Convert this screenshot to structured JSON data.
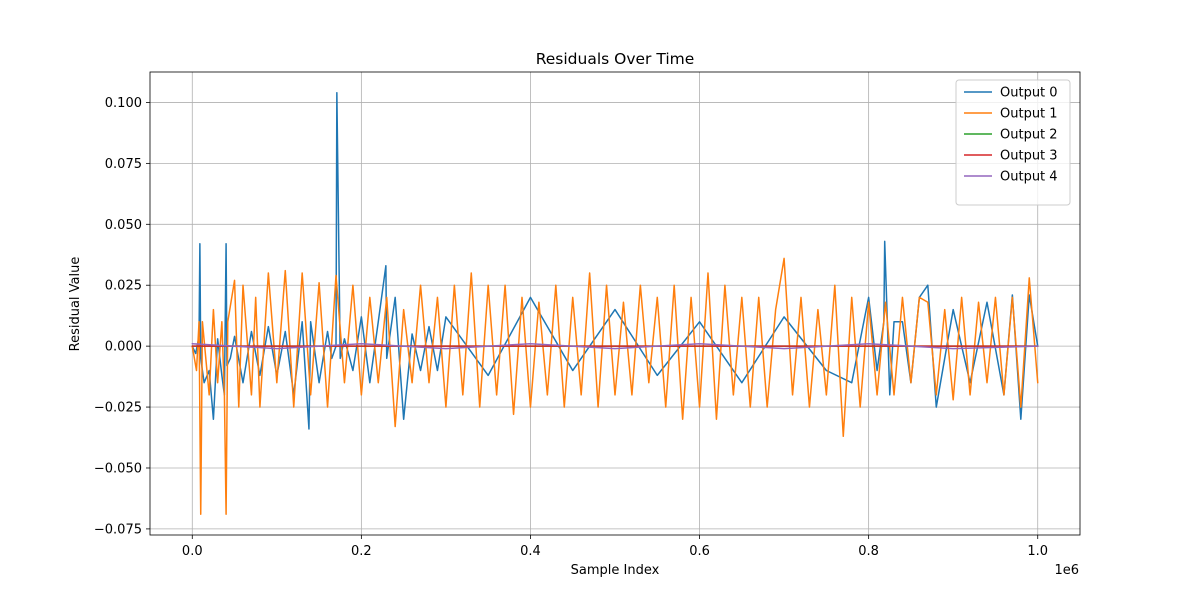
{
  "chart_data": {
    "type": "line",
    "title": "Residuals Over Time",
    "xlabel": "Sample Index",
    "ylabel": "Residual Value",
    "x_offset_label": "1e6",
    "xlim": [
      -0.05,
      1.05
    ],
    "ylim": [
      -0.0775,
      0.1125
    ],
    "x_ticks": [
      0.0,
      0.2,
      0.4,
      0.6,
      0.8,
      1.0
    ],
    "x_tick_labels": [
      "0.0",
      "0.2",
      "0.4",
      "0.6",
      "0.8",
      "1.0"
    ],
    "y_ticks": [
      -0.075,
      -0.05,
      -0.025,
      0.0,
      0.025,
      0.05,
      0.075,
      0.1
    ],
    "y_tick_labels": [
      "−0.075",
      "−0.050",
      "−0.025",
      "0.000",
      "0.025",
      "0.050",
      "0.075",
      "0.100"
    ],
    "grid": true,
    "legend_position": "top-right",
    "series": [
      {
        "name": "Output 0",
        "color": "#1f77b4",
        "x": [
          0.0,
          0.004,
          0.008,
          0.009,
          0.01,
          0.014,
          0.02,
          0.025,
          0.03,
          0.035,
          0.038,
          0.04,
          0.041,
          0.045,
          0.05,
          0.06,
          0.07,
          0.08,
          0.09,
          0.1,
          0.11,
          0.12,
          0.13,
          0.138,
          0.14,
          0.15,
          0.16,
          0.165,
          0.17,
          0.171,
          0.175,
          0.18,
          0.19,
          0.2,
          0.21,
          0.22,
          0.229,
          0.23,
          0.24,
          0.25,
          0.26,
          0.27,
          0.28,
          0.29,
          0.3,
          0.35,
          0.4,
          0.45,
          0.5,
          0.55,
          0.6,
          0.65,
          0.7,
          0.75,
          0.78,
          0.8,
          0.81,
          0.818,
          0.819,
          0.825,
          0.83,
          0.84,
          0.85,
          0.86,
          0.87,
          0.88,
          0.9,
          0.92,
          0.94,
          0.96,
          0.97,
          0.98,
          0.99,
          1.0
        ],
        "y": [
          0.0,
          -0.003,
          0.004,
          0.042,
          -0.005,
          -0.015,
          -0.01,
          -0.03,
          0.003,
          -0.012,
          -0.02,
          0.042,
          -0.008,
          -0.005,
          0.004,
          -0.015,
          0.006,
          -0.012,
          0.008,
          -0.012,
          0.006,
          -0.02,
          0.01,
          -0.034,
          0.01,
          -0.015,
          0.006,
          -0.005,
          0.0,
          0.104,
          -0.005,
          0.003,
          -0.01,
          0.012,
          -0.015,
          0.01,
          0.033,
          -0.005,
          0.02,
          -0.03,
          0.005,
          -0.01,
          0.008,
          -0.01,
          0.012,
          -0.012,
          0.02,
          -0.01,
          0.015,
          -0.012,
          0.01,
          -0.015,
          0.012,
          -0.01,
          -0.015,
          0.02,
          -0.01,
          0.01,
          0.043,
          -0.02,
          0.01,
          0.01,
          -0.015,
          0.02,
          0.025,
          -0.025,
          0.015,
          -0.015,
          0.018,
          -0.02,
          0.021,
          -0.03,
          0.021,
          0.0
        ]
      },
      {
        "name": "Output 1",
        "color": "#ff7f0e",
        "x": [
          0.0,
          0.005,
          0.008,
          0.01,
          0.012,
          0.02,
          0.025,
          0.03,
          0.035,
          0.038,
          0.04,
          0.042,
          0.05,
          0.055,
          0.06,
          0.07,
          0.075,
          0.08,
          0.09,
          0.1,
          0.11,
          0.12,
          0.13,
          0.14,
          0.15,
          0.16,
          0.17,
          0.18,
          0.19,
          0.2,
          0.21,
          0.22,
          0.23,
          0.24,
          0.25,
          0.26,
          0.27,
          0.28,
          0.29,
          0.3,
          0.31,
          0.32,
          0.33,
          0.34,
          0.35,
          0.36,
          0.37,
          0.38,
          0.39,
          0.4,
          0.41,
          0.42,
          0.43,
          0.44,
          0.45,
          0.46,
          0.47,
          0.48,
          0.49,
          0.5,
          0.51,
          0.52,
          0.53,
          0.54,
          0.55,
          0.56,
          0.57,
          0.58,
          0.59,
          0.6,
          0.61,
          0.62,
          0.63,
          0.64,
          0.65,
          0.66,
          0.67,
          0.68,
          0.69,
          0.7,
          0.71,
          0.72,
          0.73,
          0.74,
          0.75,
          0.76,
          0.77,
          0.78,
          0.79,
          0.8,
          0.81,
          0.82,
          0.83,
          0.84,
          0.85,
          0.86,
          0.87,
          0.88,
          0.89,
          0.9,
          0.91,
          0.92,
          0.93,
          0.94,
          0.95,
          0.96,
          0.97,
          0.98,
          0.99,
          1.0
        ],
        "y": [
          0.0,
          -0.01,
          0.01,
          -0.069,
          0.01,
          -0.02,
          0.015,
          -0.015,
          0.01,
          -0.02,
          -0.069,
          0.01,
          0.027,
          -0.025,
          0.025,
          -0.02,
          0.02,
          -0.025,
          0.03,
          -0.015,
          0.031,
          -0.025,
          0.03,
          -0.02,
          0.026,
          -0.025,
          0.029,
          -0.015,
          0.025,
          -0.02,
          0.02,
          -0.015,
          0.02,
          -0.033,
          0.015,
          -0.015,
          0.025,
          -0.015,
          0.02,
          -0.025,
          0.025,
          -0.02,
          0.03,
          -0.025,
          0.025,
          -0.02,
          0.025,
          -0.028,
          0.02,
          -0.025,
          0.018,
          -0.02,
          0.025,
          -0.025,
          0.02,
          -0.02,
          0.03,
          -0.025,
          0.025,
          -0.02,
          0.018,
          -0.02,
          0.025,
          -0.015,
          0.02,
          -0.025,
          0.025,
          -0.03,
          0.02,
          -0.025,
          0.03,
          -0.03,
          0.025,
          -0.02,
          0.02,
          -0.025,
          0.02,
          -0.025,
          0.015,
          0.036,
          -0.02,
          0.02,
          -0.025,
          0.015,
          -0.02,
          0.025,
          -0.037,
          0.02,
          -0.025,
          0.018,
          -0.02,
          0.018,
          -0.02,
          0.02,
          -0.015,
          0.02,
          0.018,
          -0.02,
          0.015,
          -0.022,
          0.02,
          -0.02,
          0.018,
          -0.015,
          0.02,
          -0.02,
          0.02,
          -0.025,
          0.028,
          -0.015
        ]
      },
      {
        "name": "Output 2",
        "color": "#2ca02c",
        "x": [
          0.0,
          0.2,
          0.4,
          0.6,
          0.8,
          1.0
        ],
        "y": [
          0.0,
          0.0,
          0.0,
          0.0,
          0.0,
          0.0
        ]
      },
      {
        "name": "Output 3",
        "color": "#d62728",
        "x": [
          0.0,
          0.2,
          0.4,
          0.6,
          0.8,
          1.0
        ],
        "y": [
          0.0,
          0.0,
          0.0,
          0.0,
          0.0,
          0.0
        ]
      },
      {
        "name": "Output 4",
        "color": "#9467bd",
        "x": [
          0.0,
          0.1,
          0.2,
          0.3,
          0.4,
          0.5,
          0.6,
          0.7,
          0.8,
          0.9,
          1.0
        ],
        "y": [
          0.001,
          -0.001,
          0.001,
          -0.001,
          0.001,
          -0.001,
          0.001,
          -0.001,
          0.001,
          -0.001,
          0.0
        ]
      }
    ]
  }
}
